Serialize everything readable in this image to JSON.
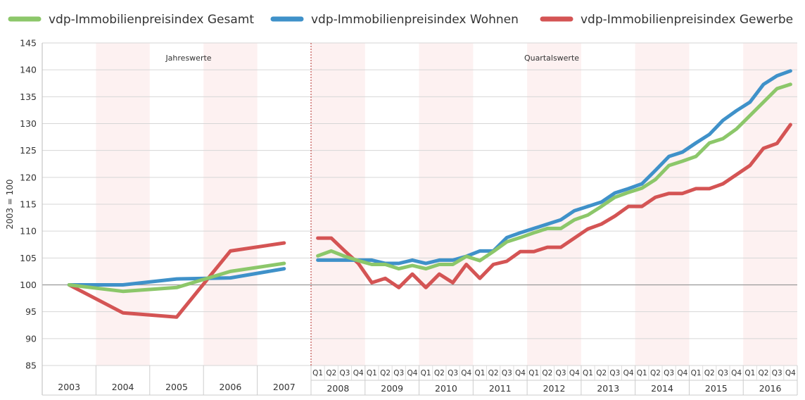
{
  "chart_data": {
    "type": "line",
    "title": "",
    "ylabel": "2003 = 100",
    "ylim": [
      85,
      145
    ],
    "yticks": [
      85,
      90,
      95,
      100,
      105,
      110,
      115,
      120,
      125,
      130,
      135,
      140,
      145
    ],
    "grid": true,
    "legend_position": "top",
    "annotations": [
      "Jahreswerte",
      "Quartalswerte"
    ],
    "annual": {
      "x": [
        "2003",
        "2004",
        "2005",
        "2006",
        "2007"
      ]
    },
    "quarterly": {
      "years": [
        "2008",
        "2009",
        "2010",
        "2011",
        "2012",
        "2013",
        "2014",
        "2015",
        "2016"
      ],
      "quarters": [
        "Q1",
        "Q2",
        "Q3",
        "Q4"
      ]
    },
    "series": [
      {
        "name": "vdp-Immobilienpreisindex Gesamt",
        "color": "#8cc76a",
        "annual": [
          100,
          98.8,
          99.5,
          102.5,
          104
        ],
        "quarterly": [
          105.4,
          106.3,
          105.3,
          104.5,
          103.8,
          103.8,
          103,
          103.6,
          103,
          103.8,
          103.8,
          105.3,
          104.5,
          106.2,
          108,
          108.8,
          109.7,
          110.5,
          110.5,
          112.1,
          113,
          114.6,
          116.3,
          117.2,
          118,
          119.6,
          122.2,
          123,
          123.9,
          126.4,
          127.2,
          129,
          131.5,
          134,
          136.5,
          137.3
        ]
      },
      {
        "name": "vdp-Immobilienpreisindex Wohnen",
        "color": "#3f91c9",
        "annual": [
          100,
          100,
          101.1,
          101.3,
          103
        ],
        "quarterly": [
          104.6,
          104.6,
          104.6,
          104.6,
          104.6,
          104,
          104,
          104.6,
          104,
          104.6,
          104.6,
          105.3,
          106.3,
          106.3,
          108.8,
          109.7,
          110.5,
          111.3,
          112.1,
          113.8,
          114.6,
          115.4,
          117.1,
          117.9,
          118.8,
          121.3,
          123.9,
          124.7,
          126.4,
          128,
          130.6,
          132.4,
          134,
          137.3,
          138.9,
          139.8
        ]
      },
      {
        "name": "vdp-Immobilienpreisindex Gewerbe",
        "color": "#d45454",
        "annual": [
          100,
          94.8,
          94,
          106.3,
          107.8
        ],
        "quarterly": [
          108.7,
          108.7,
          106.3,
          104,
          100.4,
          101.2,
          99.5,
          102,
          99.5,
          102,
          100.4,
          103.8,
          101.2,
          103.8,
          104.4,
          106.2,
          106.2,
          107,
          107,
          108.7,
          110.4,
          111.3,
          112.8,
          114.6,
          114.6,
          116.3,
          117,
          117,
          117.9,
          117.9,
          118.8,
          120.5,
          122.2,
          125.4,
          126.3,
          129.8
        ]
      }
    ]
  }
}
